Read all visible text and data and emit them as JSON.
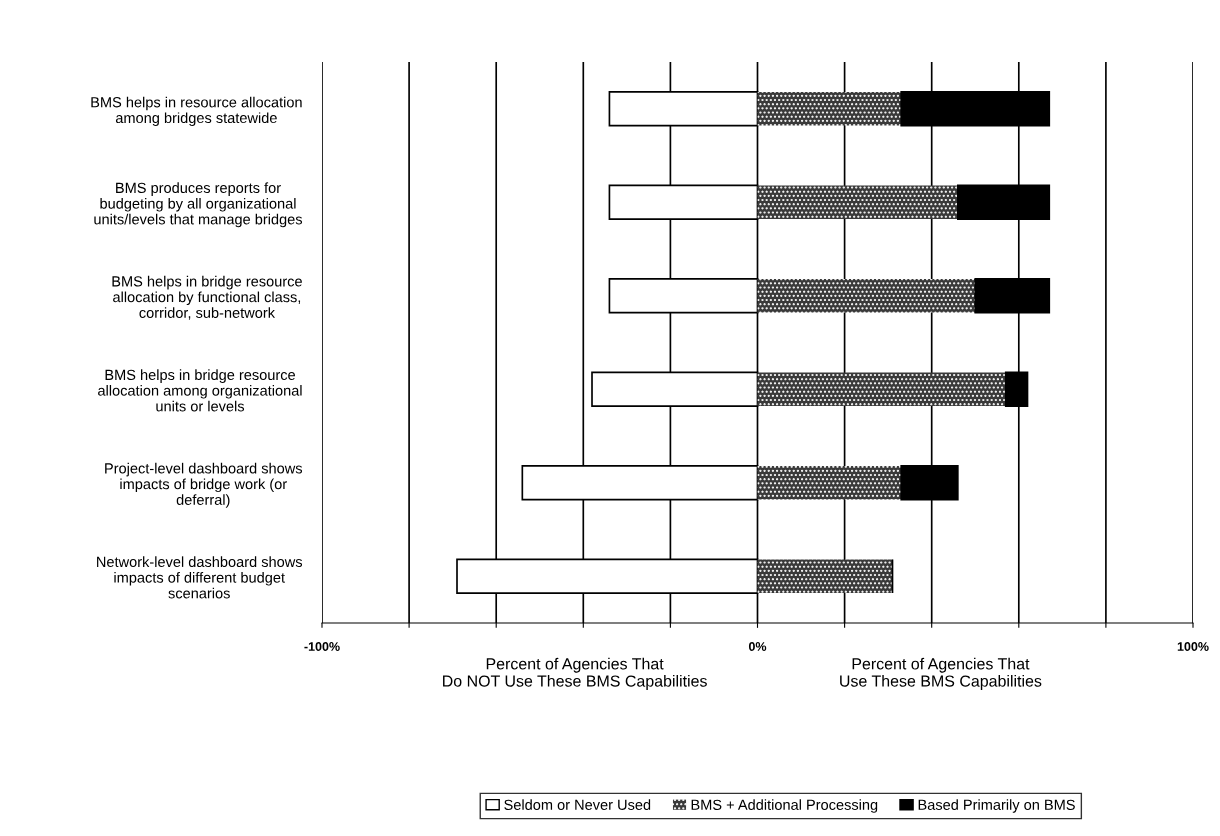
{
  "chart_data": {
    "type": "bar",
    "orientation": "horizontal",
    "stacked": true,
    "categories": [
      "BMS helps in resource allocation\namong bridges statewide",
      "BMS produces reports for\nbudgeting by all organizational\nunits/levels that manage bridges",
      "BMS helps in bridge resource\nallocation by functional class,\ncorridor, sub-network",
      "BMS helps in bridge resource\nallocation among organizational\nunits or levels",
      "Project-level dashboard shows\nimpacts of bridge work (or\ndeferral)",
      "Network-level dashboard shows\nimpacts of different budget\nscenarios"
    ],
    "series": [
      {
        "name": "Seldom or Never Used",
        "color": "#ffffff",
        "values": [
          -34,
          -34,
          -34,
          -38,
          -54,
          -69
        ]
      },
      {
        "name": "BMS + Additional Processing",
        "color": "#3a3a3a",
        "values": [
          33,
          46,
          50,
          57,
          33,
          31
        ]
      },
      {
        "name": "Based Primarily on BMS",
        "color": "#000000",
        "values": [
          34,
          21,
          17,
          5,
          13,
          0
        ]
      }
    ],
    "xlim": [
      -100,
      100
    ],
    "xticks": [
      {
        "value": -100,
        "label": "-100%"
      },
      {
        "value": -80,
        "label": null
      },
      {
        "value": -60,
        "label": null
      },
      {
        "value": -40,
        "label": null
      },
      {
        "value": -20,
        "label": null
      },
      {
        "value": 0,
        "label": "0%"
      },
      {
        "value": 20,
        "label": null
      },
      {
        "value": 40,
        "label": null
      },
      {
        "value": 60,
        "label": null
      },
      {
        "value": 80,
        "label": null
      },
      {
        "value": 100,
        "label": "100%"
      }
    ],
    "grid": "x",
    "legend": "bottom",
    "annotations": [
      "Percent of Agencies That\nDo NOT Use These BMS Capabilities",
      "Percent of Agencies That\nUse These BMS Capabilities"
    ]
  }
}
